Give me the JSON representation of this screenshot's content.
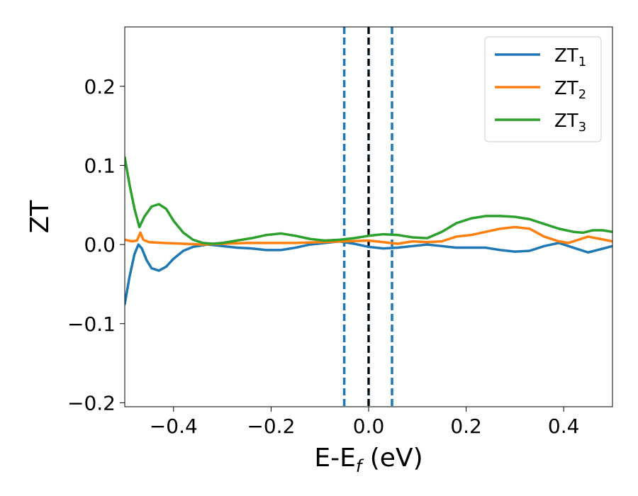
{
  "chart_data": {
    "type": "line",
    "xlabel": "E-E",
    "xlabel_sub": "f",
    "xlabel_unit": " (eV)",
    "ylabel": "ZT",
    "xlim": [
      -0.5,
      0.5
    ],
    "ylim": [
      -0.205,
      0.275
    ],
    "grid": false,
    "legend_position": "top-right",
    "x_ticks": [
      {
        "value": -0.4,
        "label": "−0.4"
      },
      {
        "value": -0.2,
        "label": "−0.2"
      },
      {
        "value": 0.0,
        "label": "0.0"
      },
      {
        "value": 0.2,
        "label": "0.2"
      },
      {
        "value": 0.4,
        "label": "0.4"
      }
    ],
    "y_ticks": [
      {
        "value": -0.2,
        "label": "−0.2"
      },
      {
        "value": -0.1,
        "label": "−0.1"
      },
      {
        "value": 0.0,
        "label": "0.0"
      },
      {
        "value": 0.1,
        "label": "0.1"
      },
      {
        "value": 0.2,
        "label": "0.2"
      }
    ],
    "vertical_lines": [
      {
        "x": -0.05,
        "color": "#1f77b4",
        "style": "dashed"
      },
      {
        "x": 0.0,
        "color": "#1f77b4",
        "style": "dashed"
      },
      {
        "x": 0.0,
        "color": "#000000",
        "style": "dashed"
      },
      {
        "x": 0.048,
        "color": "#1f77b4",
        "style": "dashed"
      }
    ],
    "series": [
      {
        "name": "ZT",
        "sub": "1",
        "color": "#1f77b4",
        "points": [
          [
            -0.5,
            -0.075
          ],
          [
            -0.49,
            -0.04
          ],
          [
            -0.48,
            -0.012
          ],
          [
            -0.472,
            0.0
          ],
          [
            -0.465,
            -0.005
          ],
          [
            -0.455,
            -0.02
          ],
          [
            -0.445,
            -0.03
          ],
          [
            -0.43,
            -0.033
          ],
          [
            -0.415,
            -0.028
          ],
          [
            -0.4,
            -0.018
          ],
          [
            -0.38,
            -0.008
          ],
          [
            -0.36,
            -0.003
          ],
          [
            -0.33,
            0.0
          ],
          [
            -0.3,
            -0.002
          ],
          [
            -0.27,
            -0.004
          ],
          [
            -0.24,
            -0.005
          ],
          [
            -0.21,
            -0.007
          ],
          [
            -0.18,
            -0.007
          ],
          [
            -0.15,
            -0.004
          ],
          [
            -0.12,
            0.0
          ],
          [
            -0.09,
            0.002
          ],
          [
            -0.06,
            0.004
          ],
          [
            -0.03,
            0.001
          ],
          [
            0.0,
            -0.003
          ],
          [
            0.03,
            -0.005
          ],
          [
            0.06,
            -0.004
          ],
          [
            0.09,
            -0.002
          ],
          [
            0.12,
            0.0
          ],
          [
            0.15,
            -0.002
          ],
          [
            0.18,
            -0.004
          ],
          [
            0.21,
            -0.004
          ],
          [
            0.24,
            -0.004
          ],
          [
            0.27,
            -0.007
          ],
          [
            0.3,
            -0.009
          ],
          [
            0.33,
            -0.008
          ],
          [
            0.36,
            -0.002
          ],
          [
            0.39,
            0.002
          ],
          [
            0.42,
            -0.004
          ],
          [
            0.45,
            -0.01
          ],
          [
            0.475,
            -0.006
          ],
          [
            0.5,
            -0.002
          ]
        ]
      },
      {
        "name": "ZT",
        "sub": "2",
        "color": "#ff7f0e",
        "points": [
          [
            -0.5,
            0.006
          ],
          [
            -0.485,
            0.004
          ],
          [
            -0.475,
            0.005
          ],
          [
            -0.468,
            0.015
          ],
          [
            -0.462,
            0.006
          ],
          [
            -0.45,
            0.003
          ],
          [
            -0.42,
            0.002
          ],
          [
            -0.38,
            0.001
          ],
          [
            -0.34,
            0.0
          ],
          [
            -0.3,
            0.001
          ],
          [
            -0.25,
            0.002
          ],
          [
            -0.2,
            0.002
          ],
          [
            -0.15,
            0.002
          ],
          [
            -0.1,
            0.003
          ],
          [
            -0.05,
            0.004
          ],
          [
            0.0,
            0.005
          ],
          [
            0.03,
            0.003
          ],
          [
            0.06,
            0.001
          ],
          [
            0.09,
            0.004
          ],
          [
            0.12,
            0.003
          ],
          [
            0.15,
            0.004
          ],
          [
            0.18,
            0.01
          ],
          [
            0.21,
            0.012
          ],
          [
            0.24,
            0.016
          ],
          [
            0.27,
            0.02
          ],
          [
            0.3,
            0.022
          ],
          [
            0.33,
            0.02
          ],
          [
            0.36,
            0.01
          ],
          [
            0.39,
            0.004
          ],
          [
            0.41,
            0.002
          ],
          [
            0.43,
            0.006
          ],
          [
            0.45,
            0.01
          ],
          [
            0.475,
            0.007
          ],
          [
            0.5,
            0.004
          ]
        ]
      },
      {
        "name": "ZT",
        "sub": "3",
        "color": "#2ca02c",
        "points": [
          [
            -0.5,
            0.11
          ],
          [
            -0.49,
            0.075
          ],
          [
            -0.48,
            0.045
          ],
          [
            -0.47,
            0.022
          ],
          [
            -0.46,
            0.035
          ],
          [
            -0.445,
            0.048
          ],
          [
            -0.43,
            0.051
          ],
          [
            -0.415,
            0.045
          ],
          [
            -0.4,
            0.03
          ],
          [
            -0.38,
            0.015
          ],
          [
            -0.36,
            0.006
          ],
          [
            -0.34,
            0.002
          ],
          [
            -0.32,
            0.001
          ],
          [
            -0.3,
            0.002
          ],
          [
            -0.27,
            0.005
          ],
          [
            -0.24,
            0.008
          ],
          [
            -0.21,
            0.012
          ],
          [
            -0.18,
            0.014
          ],
          [
            -0.15,
            0.011
          ],
          [
            -0.12,
            0.007
          ],
          [
            -0.09,
            0.005
          ],
          [
            -0.06,
            0.006
          ],
          [
            -0.03,
            0.008
          ],
          [
            0.0,
            0.011
          ],
          [
            0.03,
            0.013
          ],
          [
            0.06,
            0.012
          ],
          [
            0.09,
            0.009
          ],
          [
            0.12,
            0.008
          ],
          [
            0.15,
            0.016
          ],
          [
            0.18,
            0.027
          ],
          [
            0.21,
            0.033
          ],
          [
            0.24,
            0.036
          ],
          [
            0.27,
            0.036
          ],
          [
            0.3,
            0.035
          ],
          [
            0.33,
            0.032
          ],
          [
            0.36,
            0.026
          ],
          [
            0.39,
            0.02
          ],
          [
            0.42,
            0.016
          ],
          [
            0.44,
            0.015
          ],
          [
            0.46,
            0.018
          ],
          [
            0.48,
            0.018
          ],
          [
            0.5,
            0.016
          ]
        ]
      }
    ]
  }
}
